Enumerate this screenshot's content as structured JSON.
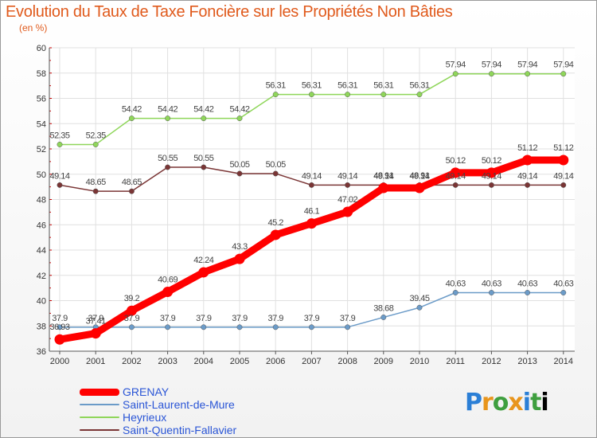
{
  "chart_data": {
    "type": "line",
    "title": "Evolution du Taux de Taxe Foncière sur les Propriétés Non Bâties",
    "subtitle": "(en %)",
    "ylim": [
      36,
      60
    ],
    "yticks": [
      "36",
      "38",
      "40",
      "42",
      "44",
      "46",
      "48",
      "50",
      "52",
      "54",
      "56",
      "58",
      "60"
    ],
    "categories": [
      "2000",
      "2001",
      "2002",
      "2003",
      "2004",
      "2005",
      "2006",
      "2007",
      "2008",
      "2009",
      "2010",
      "2011",
      "2012",
      "2013",
      "2014"
    ],
    "grid": true,
    "legend_position": "bottom-left",
    "series": [
      {
        "name": "GRENAY",
        "color": "#ff0000",
        "values": [
          36.93,
          37.41,
          39.2,
          40.69,
          42.24,
          43.3,
          45.2,
          46.1,
          47.02,
          48.91,
          48.91,
          50.12,
          50.12,
          51.12,
          51.12
        ],
        "labels": [
          "36.93",
          "37.41",
          "39.2",
          "40.69",
          "42.24",
          "43.3",
          "45.2",
          "46.1",
          "47.02",
          "48.91",
          "48.91",
          "50.12",
          "50.12",
          "51.12",
          "51.12"
        ]
      },
      {
        "name": "Saint-Laurent-de-Mure",
        "color": "#6b9bc8",
        "values": [
          37.9,
          37.9,
          37.9,
          37.9,
          37.9,
          37.9,
          37.9,
          37.9,
          37.9,
          38.68,
          39.45,
          40.63,
          40.63,
          40.63,
          40.63
        ],
        "labels": [
          "37.9",
          "37.9",
          "37.9",
          "37.9",
          "37.9",
          "37.9",
          "37.9",
          "37.9",
          "37.9",
          "38.68",
          "39.45",
          "40.63",
          "40.63",
          "40.63",
          "40.63"
        ]
      },
      {
        "name": "Heyrieux",
        "color": "#8fd65a",
        "values": [
          52.35,
          52.35,
          54.42,
          54.42,
          54.42,
          54.42,
          56.31,
          56.31,
          56.31,
          56.31,
          56.31,
          57.94,
          57.94,
          57.94,
          57.94
        ],
        "labels": [
          "52.35",
          "52.35",
          "54.42",
          "54.42",
          "54.42",
          "54.42",
          "56.31",
          "56.31",
          "56.31",
          "56.31",
          "56.31",
          "57.94",
          "57.94",
          "57.94",
          "57.94"
        ]
      },
      {
        "name": "Saint-Quentin-Fallavier",
        "color": "#7a3535",
        "values": [
          49.14,
          48.65,
          48.65,
          50.55,
          50.55,
          50.05,
          50.05,
          49.14,
          49.14,
          49.14,
          49.14,
          49.14,
          49.14,
          49.14,
          49.14
        ],
        "labels": [
          "49.14",
          "48.65",
          "48.65",
          "50.55",
          "50.55",
          "50.05",
          "50.05",
          "49.14",
          "49.14",
          "49.14",
          "49.14",
          "49.14",
          "49.14",
          "49.14",
          "49.14"
        ]
      }
    ]
  },
  "logo": {
    "letters": [
      "P",
      "r",
      "o",
      "x",
      "i",
      "t",
      "i"
    ]
  }
}
